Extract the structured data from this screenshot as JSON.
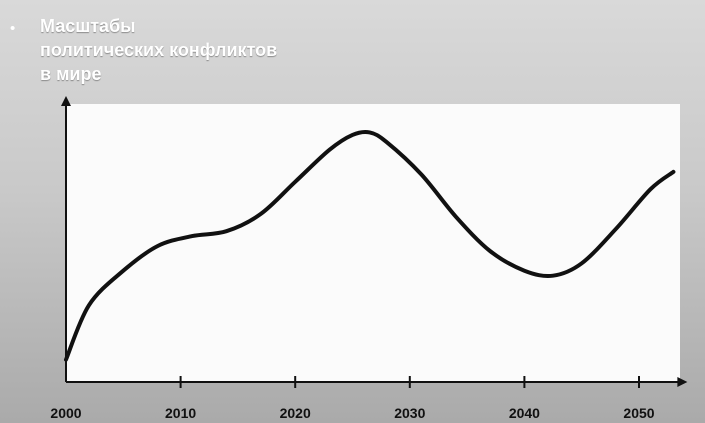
{
  "slide": {
    "bullet": "•",
    "title_lines": [
      "Масштабы",
      "политических конфликтов",
      "в мире"
    ]
  },
  "chart_data": {
    "type": "line",
    "title": "Масштабы политических конфликтов в мире",
    "xlabel": "",
    "ylabel": "",
    "x_ticks": [
      2000,
      2010,
      2020,
      2030,
      2040,
      2050
    ],
    "xlim": [
      2000,
      2053
    ],
    "ylim": [
      0,
      100
    ],
    "y_ticks_shown": false,
    "grid": false,
    "series": [
      {
        "line_color": "#111111",
        "x": [
          2000,
          2002,
          2005,
          2008,
          2011,
          2014,
          2017,
          2020,
          2023,
          2025,
          2026.5,
          2028,
          2031,
          2034,
          2037,
          2040,
          2042.5,
          2045,
          2048,
          2051,
          2053
        ],
        "y": [
          5,
          27,
          41,
          51,
          55,
          57,
          64,
          77,
          90,
          96,
          97,
          93,
          80,
          63,
          49,
          41,
          39,
          44,
          58,
          74,
          81
        ]
      }
    ]
  }
}
